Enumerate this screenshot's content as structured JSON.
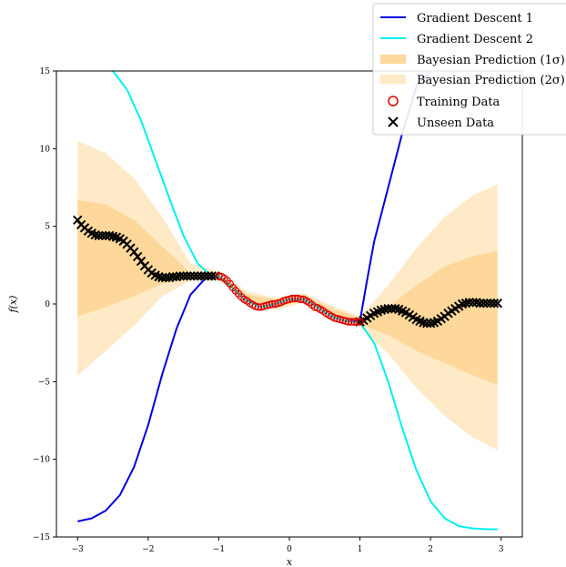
{
  "chart_data": {
    "type": "line",
    "title": "",
    "xlabel": "x",
    "ylabel": "f(x)",
    "xlim": [
      -3.3,
      3.3
    ],
    "ylim": [
      -15,
      15
    ],
    "xticks": [
      -3,
      -2,
      -1,
      0,
      1,
      2,
      3
    ],
    "yticks": [
      -15,
      -10,
      -5,
      0,
      5,
      10,
      15
    ],
    "xtick_labels": [
      "−3",
      "−2",
      "−1",
      "0",
      "1",
      "2",
      "3"
    ],
    "ytick_labels": [
      "−15",
      "−10",
      "−5",
      "0",
      "5",
      "10",
      "15"
    ],
    "grid": false,
    "legend_position": "top-right",
    "series": [
      {
        "name": "Gradient Descent 1",
        "kind": "line",
        "color": "#0000dd",
        "x": [
          -3.0,
          -2.8,
          -2.6,
          -2.4,
          -2.2,
          -2.0,
          -1.8,
          -1.6,
          -1.4,
          -1.2,
          -1.0,
          -0.8,
          -0.6,
          -0.4,
          -0.2,
          0.0,
          0.2,
          0.4,
          0.6,
          0.8,
          1.0,
          1.1,
          1.2,
          1.4,
          1.6,
          1.8,
          2.0
        ],
        "y": [
          -14.0,
          -13.8,
          -13.3,
          -12.3,
          -10.5,
          -7.8,
          -4.5,
          -1.6,
          0.6,
          1.6,
          1.8,
          1.0,
          0.2,
          -0.2,
          0.0,
          0.3,
          0.3,
          -0.2,
          -0.8,
          -1.1,
          -1.1,
          1.5,
          4.0,
          7.5,
          11.0,
          14.0,
          15.0
        ]
      },
      {
        "name": "Gradient Descent 2",
        "kind": "line",
        "color": "#00f0f0",
        "x": [
          -2.5,
          -2.3,
          -2.1,
          -1.9,
          -1.7,
          -1.5,
          -1.3,
          -1.1,
          -1.0,
          -0.8,
          -0.6,
          -0.4,
          -0.2,
          0.0,
          0.2,
          0.4,
          0.6,
          0.8,
          1.0,
          1.2,
          1.4,
          1.6,
          1.8,
          2.0,
          2.2,
          2.4,
          2.6,
          2.8,
          2.95
        ],
        "y": [
          15.0,
          13.8,
          11.8,
          9.3,
          6.8,
          4.4,
          2.6,
          1.8,
          1.8,
          1.0,
          0.2,
          -0.2,
          0.0,
          0.3,
          0.3,
          -0.2,
          -0.8,
          -1.1,
          -1.2,
          -2.5,
          -5.0,
          -8.0,
          -10.7,
          -12.7,
          -13.8,
          -14.3,
          -14.45,
          -14.5,
          -14.5
        ]
      }
    ],
    "bands": [
      {
        "name": "Bayesian Prediction (1σ)",
        "color": "#fdd89a",
        "x": [
          -3.0,
          -2.6,
          -2.2,
          -1.8,
          -1.4,
          -1.0,
          -0.6,
          -0.2,
          0.2,
          0.6,
          1.0,
          1.4,
          1.8,
          2.2,
          2.6,
          2.95
        ],
        "lower": [
          -0.8,
          -0.2,
          0.5,
          1.3,
          1.7,
          1.6,
          0.2,
          -0.2,
          0.2,
          -0.8,
          -1.3,
          -2.0,
          -3.0,
          -3.8,
          -4.6,
          -5.2
        ],
        "upper": [
          6.7,
          6.4,
          5.4,
          3.7,
          2.0,
          2.0,
          0.6,
          0.3,
          0.6,
          -0.3,
          -0.9,
          -0.2,
          1.2,
          2.4,
          3.1,
          3.4
        ]
      },
      {
        "name": "Bayesian Prediction (2σ)",
        "color": "#feeac6",
        "x": [
          -3.0,
          -2.6,
          -2.2,
          -1.8,
          -1.4,
          -1.0,
          -0.6,
          -0.2,
          0.2,
          0.6,
          1.0,
          1.4,
          1.8,
          2.2,
          2.6,
          2.95
        ],
        "lower": [
          -4.6,
          -3.0,
          -1.4,
          0.5,
          1.5,
          1.5,
          0.0,
          -0.4,
          0.1,
          -1.0,
          -1.5,
          -3.2,
          -5.4,
          -7.2,
          -8.6,
          -9.4
        ],
        "upper": [
          10.5,
          9.7,
          8.1,
          5.6,
          2.6,
          2.1,
          0.8,
          0.4,
          0.7,
          -0.1,
          -0.8,
          1.2,
          3.6,
          5.6,
          7.0,
          7.7
        ]
      }
    ],
    "training_data": {
      "name": "Training Data",
      "color": "#dd0000",
      "x": [
        -1.0,
        -0.96,
        -0.92,
        -0.88,
        -0.84,
        -0.8,
        -0.76,
        -0.72,
        -0.68,
        -0.64,
        -0.6,
        -0.56,
        -0.52,
        -0.48,
        -0.44,
        -0.4,
        -0.36,
        -0.32,
        -0.28,
        -0.24,
        -0.2,
        -0.16,
        -0.12,
        -0.08,
        -0.04,
        0.0,
        0.04,
        0.08,
        0.12,
        0.16,
        0.2,
        0.24,
        0.28,
        0.32,
        0.36,
        0.4,
        0.44,
        0.48,
        0.52,
        0.56,
        0.6,
        0.64,
        0.68,
        0.72,
        0.76,
        0.8,
        0.84,
        0.88,
        0.92,
        0.96,
        1.0
      ],
      "y": [
        1.8,
        1.75,
        1.65,
        1.5,
        1.3,
        1.05,
        0.85,
        0.65,
        0.45,
        0.3,
        0.2,
        0.05,
        -0.05,
        -0.15,
        -0.2,
        -0.2,
        -0.15,
        -0.1,
        -0.05,
        0.0,
        0.0,
        0.05,
        0.1,
        0.2,
        0.25,
        0.3,
        0.35,
        0.35,
        0.35,
        0.3,
        0.3,
        0.2,
        0.1,
        -0.05,
        -0.2,
        -0.25,
        -0.35,
        -0.45,
        -0.6,
        -0.7,
        -0.8,
        -0.9,
        -0.95,
        -1.0,
        -1.05,
        -1.1,
        -1.15,
        -1.15,
        -1.15,
        -1.15,
        -1.15
      ]
    },
    "unseen_data": {
      "name": "Unseen Data",
      "color": "#000000",
      "x": [
        -3.0,
        -2.95,
        -2.9,
        -2.85,
        -2.8,
        -2.75,
        -2.7,
        -2.65,
        -2.6,
        -2.55,
        -2.5,
        -2.45,
        -2.4,
        -2.35,
        -2.3,
        -2.25,
        -2.2,
        -2.15,
        -2.1,
        -2.05,
        -2.0,
        -1.95,
        -1.9,
        -1.85,
        -1.8,
        -1.75,
        -1.7,
        -1.65,
        -1.6,
        -1.55,
        -1.5,
        -1.45,
        -1.4,
        -1.35,
        -1.3,
        -1.25,
        -1.2,
        -1.15,
        -1.1,
        -1.05,
        1.0,
        1.05,
        1.1,
        1.15,
        1.2,
        1.25,
        1.3,
        1.35,
        1.4,
        1.45,
        1.5,
        1.55,
        1.6,
        1.65,
        1.7,
        1.75,
        1.8,
        1.85,
        1.9,
        1.95,
        2.0,
        2.05,
        2.1,
        2.15,
        2.2,
        2.25,
        2.3,
        2.35,
        2.4,
        2.45,
        2.5,
        2.55,
        2.6,
        2.65,
        2.7,
        2.75,
        2.8,
        2.85,
        2.9,
        2.95
      ],
      "y": [
        5.4,
        5.1,
        4.9,
        4.7,
        4.55,
        4.45,
        4.4,
        4.4,
        4.4,
        4.4,
        4.35,
        4.3,
        4.2,
        4.05,
        3.85,
        3.6,
        3.35,
        3.05,
        2.75,
        2.45,
        2.2,
        2.0,
        1.85,
        1.75,
        1.7,
        1.7,
        1.7,
        1.75,
        1.75,
        1.8,
        1.8,
        1.8,
        1.8,
        1.8,
        1.8,
        1.8,
        1.8,
        1.8,
        1.8,
        1.8,
        -1.15,
        -1.05,
        -0.9,
        -0.75,
        -0.6,
        -0.5,
        -0.4,
        -0.35,
        -0.3,
        -0.3,
        -0.3,
        -0.35,
        -0.45,
        -0.55,
        -0.7,
        -0.85,
        -1.0,
        -1.1,
        -1.2,
        -1.25,
        -1.25,
        -1.2,
        -1.1,
        -0.95,
        -0.8,
        -0.6,
        -0.45,
        -0.3,
        -0.15,
        0.0,
        0.05,
        0.1,
        0.1,
        0.1,
        0.05,
        0.05,
        0.05,
        0.05,
        0.05,
        0.05
      ]
    }
  },
  "legend": {
    "items": [
      {
        "label": "Gradient Descent 1"
      },
      {
        "label": "Gradient Descent 2"
      },
      {
        "label": "Bayesian Prediction (1σ)"
      },
      {
        "label": "Bayesian Prediction (2σ)"
      },
      {
        "label": "Training Data"
      },
      {
        "label": "Unseen Data"
      }
    ]
  }
}
